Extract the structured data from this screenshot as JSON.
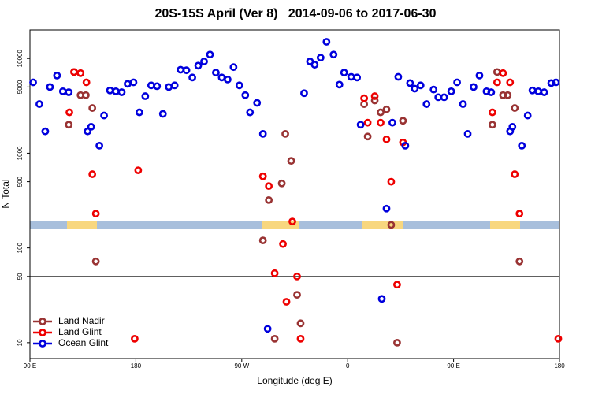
{
  "chart_data": {
    "type": "scatter",
    "title": "20S-15S April (Ver 8)   2014-09-06 to 2017-06-30",
    "xlabel": "Longitude (deg E)",
    "ylabel": "N Total",
    "log_y": true,
    "legend": "lower left",
    "reference_line": 50,
    "xlim": [
      90,
      540
    ],
    "xticks": [
      {
        "value": 90,
        "label": "90 E"
      },
      180,
      {
        "value": 270,
        "label": "90 W"
      },
      {
        "value": 360,
        "label": "0"
      },
      {
        "value": 450,
        "label": "90 E"
      },
      {
        "value": 540,
        "label": "180"
      }
    ],
    "ylim": [
      6.8,
      20000
    ],
    "yticks": [
      10,
      50,
      100,
      500,
      1000,
      5000,
      10000
    ],
    "series": [
      {
        "name": "Land Nadir",
        "color": "#993333",
        "x": [
          123,
          127.5,
          133,
          137.5,
          143,
          146,
          288,
          293,
          298,
          304,
          307,
          312,
          317,
          320,
          374,
          377,
          383,
          388,
          393,
          397,
          402,
          407,
          483,
          487,
          492,
          496,
          502,
          506
        ],
        "values": [
          2000,
          7200,
          4100,
          4100,
          3000,
          72,
          120,
          320,
          11,
          480,
          1600,
          830,
          32,
          16,
          3300,
          1500,
          3600,
          2700,
          2900,
          175,
          10,
          2200,
          2000,
          7200,
          4100,
          4100,
          3000,
          72
        ]
      },
      {
        "name": "Land Glint",
        "color": "#ee0000",
        "x": [
          123.5,
          127.5,
          133,
          138,
          143,
          146,
          179,
          182,
          288,
          293,
          298,
          305,
          308,
          313,
          317,
          320,
          374,
          377,
          383,
          388,
          393,
          397,
          402,
          407,
          483,
          487,
          492,
          498,
          502,
          506,
          539
        ],
        "values": [
          2700,
          7200,
          7000,
          5600,
          600,
          230,
          11,
          660,
          570,
          450,
          54,
          110,
          27,
          190,
          50,
          11,
          3800,
          2100,
          4000,
          2100,
          1400,
          500,
          41,
          1300,
          2700,
          5600,
          7000,
          5600,
          600,
          230,
          11
        ]
      },
      {
        "name": "Ocean Glint",
        "color": "#0000dd",
        "x": [
          92.7,
          98,
          103,
          107,
          113,
          118,
          123,
          139,
          142,
          149,
          153,
          158,
          163,
          168,
          173,
          178,
          183,
          188,
          193,
          198,
          203,
          208,
          213,
          218,
          223,
          228,
          233,
          238,
          243,
          248,
          253,
          258,
          263,
          268,
          273,
          277,
          283,
          288,
          292,
          323,
          328,
          332,
          337,
          342,
          348,
          353,
          357,
          363,
          368,
          371,
          389,
          393,
          398,
          403,
          409,
          413,
          417,
          422,
          427,
          433,
          437,
          442,
          448,
          453,
          458,
          462,
          467,
          472,
          478,
          482,
          498,
          500,
          508,
          513,
          517,
          522,
          527,
          533,
          537
        ],
        "values": [
          5600,
          3300,
          1700,
          5000,
          6600,
          4500,
          4400,
          1700,
          1900,
          1200,
          2500,
          4600,
          4500,
          4400,
          5400,
          5600,
          2700,
          4000,
          5200,
          5100,
          2600,
          5000,
          5200,
          7600,
          7500,
          6300,
          8400,
          9300,
          11000,
          7100,
          6300,
          6000,
          8100,
          5200,
          4100,
          2700,
          3400,
          1600,
          14,
          4300,
          9300,
          8600,
          10200,
          15000,
          11000,
          5300,
          7100,
          6400,
          6300,
          2000,
          29,
          260,
          2100,
          6400,
          1200,
          5500,
          4800,
          5200,
          3300,
          4700,
          3900,
          3900,
          4500,
          5600,
          3300,
          1600,
          5000,
          6600,
          4500,
          4400,
          1700,
          1900,
          1200,
          2500,
          4600,
          4500,
          4400,
          5500,
          5600
        ]
      }
    ]
  }
}
